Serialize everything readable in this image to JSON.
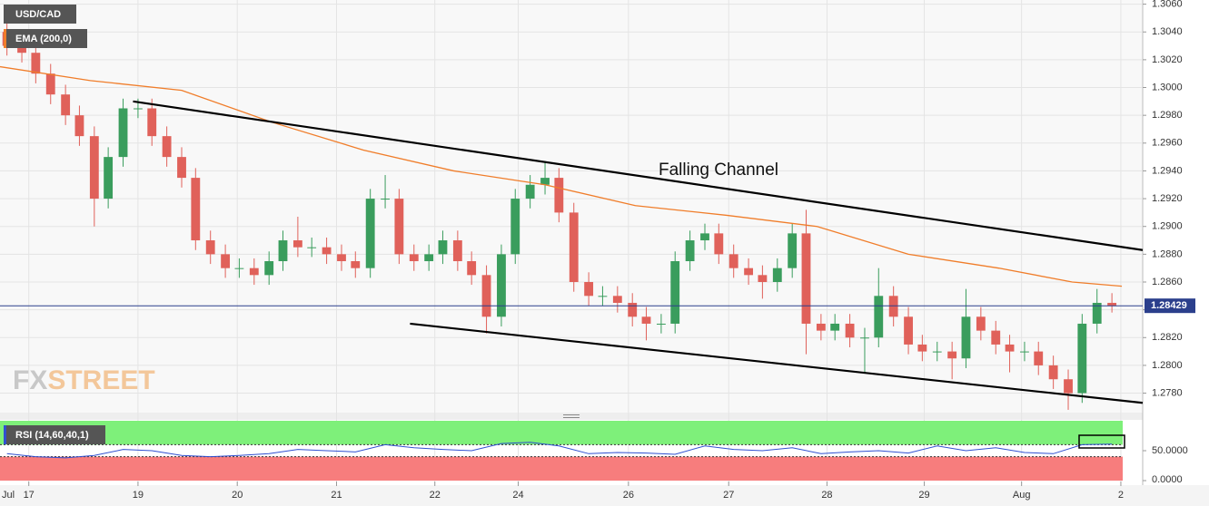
{
  "chart_data": [
    {
      "type": "candlestick",
      "title": "USD/CAD",
      "x_month_label": "Jul",
      "x": [
        0.07,
        0.22,
        0.36,
        0.51,
        0.66,
        0.8,
        0.95,
        1.09,
        1.24,
        1.39,
        1.53,
        1.68,
        1.83,
        1.97,
        2.12,
        2.27,
        2.41,
        2.56,
        2.71,
        2.85,
        3.0,
        3.14,
        3.29,
        3.44,
        3.58,
        3.73,
        3.88,
        4.02,
        4.17,
        4.32,
        4.46,
        4.61,
        4.75,
        4.9,
        5.05,
        5.19,
        5.34,
        5.49,
        5.63,
        5.78,
        5.93,
        6.07,
        6.22,
        6.37,
        6.51,
        6.66,
        6.8,
        6.95,
        7.1,
        7.24,
        7.39,
        7.54,
        7.68,
        7.83,
        7.98,
        8.12,
        8.27,
        8.41,
        8.56,
        8.71,
        8.85,
        9.0,
        9.15,
        9.29,
        9.44,
        9.59,
        9.73,
        9.88,
        10.03,
        10.17,
        10.32,
        10.46,
        10.61,
        10.76,
        10.9,
        11.05,
        11.2
      ],
      "open": [
        1.304,
        1.303,
        1.3025,
        1.301,
        1.2995,
        1.298,
        1.2965,
        1.292,
        1.295,
        1.2985,
        1.2985,
        1.2965,
        1.295,
        1.2935,
        1.289,
        1.288,
        1.287,
        1.287,
        1.2865,
        1.2875,
        1.289,
        1.2885,
        1.2885,
        1.288,
        1.2875,
        1.287,
        1.292,
        1.292,
        1.288,
        1.2875,
        1.288,
        1.289,
        1.2875,
        1.2865,
        1.2835,
        1.288,
        1.292,
        1.293,
        1.2935,
        1.291,
        1.286,
        1.285,
        1.285,
        1.2845,
        1.2835,
        1.283,
        1.283,
        1.2875,
        1.289,
        1.2895,
        1.288,
        1.287,
        1.2865,
        1.286,
        1.287,
        1.2895,
        1.283,
        1.2825,
        1.283,
        1.282,
        1.282,
        1.285,
        1.2835,
        1.2815,
        1.281,
        1.281,
        1.2805,
        1.2835,
        1.2825,
        1.2815,
        1.281,
        1.281,
        1.28,
        1.279,
        1.278,
        1.283,
        1.2845
      ],
      "high": [
        1.3047,
        1.3037,
        1.3032,
        1.3017,
        1.3002,
        1.2987,
        1.2972,
        1.2957,
        1.2992,
        1.2992,
        1.2992,
        1.2972,
        1.2957,
        1.2942,
        1.2897,
        1.2887,
        1.2877,
        1.2877,
        1.2882,
        1.2897,
        1.2907,
        1.2892,
        1.2892,
        1.2887,
        1.2882,
        1.2927,
        1.2937,
        1.2927,
        1.2887,
        1.2887,
        1.2897,
        1.2897,
        1.2882,
        1.2872,
        1.2887,
        1.2927,
        1.2937,
        1.2947,
        1.2942,
        1.2917,
        1.2867,
        1.2857,
        1.2857,
        1.2852,
        1.2842,
        1.2837,
        1.2882,
        1.2897,
        1.2902,
        1.2902,
        1.2887,
        1.2877,
        1.2872,
        1.2877,
        1.2902,
        1.2912,
        1.2837,
        1.2837,
        1.2837,
        1.2827,
        1.287,
        1.2857,
        1.2842,
        1.2822,
        1.2817,
        1.2817,
        1.2855,
        1.2842,
        1.2832,
        1.2822,
        1.2817,
        1.2817,
        1.2807,
        1.2797,
        1.2837,
        1.2855,
        1.2852
      ],
      "low": [
        1.3023,
        1.3018,
        1.3003,
        1.2988,
        1.2973,
        1.2958,
        1.29,
        1.2913,
        1.2943,
        1.2978,
        1.2958,
        1.2943,
        1.2928,
        1.2883,
        1.2873,
        1.2863,
        1.2863,
        1.2858,
        1.2858,
        1.2868,
        1.2878,
        1.2878,
        1.2873,
        1.2868,
        1.2863,
        1.2863,
        1.2913,
        1.2873,
        1.2868,
        1.2868,
        1.2873,
        1.2868,
        1.2858,
        1.2823,
        1.2828,
        1.2873,
        1.2913,
        1.2923,
        1.2903,
        1.2853,
        1.2843,
        1.2843,
        1.2838,
        1.2828,
        1.2818,
        1.2823,
        1.2823,
        1.2868,
        1.2883,
        1.2873,
        1.2863,
        1.2858,
        1.2848,
        1.2853,
        1.2863,
        1.2808,
        1.2818,
        1.2818,
        1.2813,
        1.2795,
        1.2813,
        1.2828,
        1.2808,
        1.2803,
        1.2803,
        1.279,
        1.2798,
        1.2818,
        1.2808,
        1.2795,
        1.2803,
        1.2793,
        1.2783,
        1.2768,
        1.2773,
        1.2823,
        1.2838
      ],
      "close": [
        1.303,
        1.3025,
        1.301,
        1.2995,
        1.298,
        1.2965,
        1.292,
        1.295,
        1.2985,
        1.2985,
        1.2965,
        1.295,
        1.2935,
        1.289,
        1.288,
        1.287,
        1.287,
        1.2865,
        1.2875,
        1.289,
        1.2885,
        1.2885,
        1.288,
        1.2875,
        1.287,
        1.292,
        1.292,
        1.288,
        1.2875,
        1.288,
        1.289,
        1.2875,
        1.2865,
        1.2835,
        1.288,
        1.292,
        1.293,
        1.2935,
        1.291,
        1.286,
        1.285,
        1.285,
        1.2845,
        1.2835,
        1.283,
        1.283,
        1.2875,
        1.289,
        1.2895,
        1.288,
        1.287,
        1.2865,
        1.286,
        1.287,
        1.2895,
        1.283,
        1.2825,
        1.283,
        1.282,
        1.282,
        1.285,
        1.2835,
        1.2815,
        1.281,
        1.281,
        1.2805,
        1.2835,
        1.2825,
        1.2815,
        1.281,
        1.281,
        1.28,
        1.279,
        1.278,
        1.283,
        1.2845,
        1.2843
      ],
      "up_color": "#3a9d5d",
      "down_color": "#e0615a",
      "overlay": {
        "name": "EMA (200,0)",
        "color": "#f07d2a",
        "x": [
          0,
          0.91,
          1.83,
          2.74,
          3.66,
          4.57,
          5.49,
          6.4,
          7.32,
          8.23,
          9.15,
          10.06,
          10.8,
          11.3
        ],
        "values": [
          1.3015,
          1.3005,
          1.2998,
          1.2975,
          1.2955,
          1.294,
          1.293,
          1.2915,
          1.2908,
          1.29,
          1.288,
          1.287,
          1.286,
          1.2857
        ]
      },
      "trendlines": [
        {
          "x": [
            1.34,
            11.51
          ],
          "values": [
            1.299,
            1.2883
          ]
        },
        {
          "x": [
            4.13,
            11.51
          ],
          "values": [
            1.283,
            1.2773
          ]
        }
      ],
      "annotation": "Falling Channel",
      "current_price": 1.28429,
      "watermark": [
        "FX",
        "STREET"
      ],
      "xlim": [
        0,
        11.51
      ],
      "ylim": [
        1.2766,
        1.3063
      ],
      "yticks": [
        {
          "value": 1.306,
          "label": "1.3060"
        },
        {
          "value": 1.304,
          "label": "1.3040"
        },
        {
          "value": 1.302,
          "label": "1.3020"
        },
        {
          "value": 1.3,
          "label": "1.3000"
        },
        {
          "value": 1.298,
          "label": "1.2980"
        },
        {
          "value": 1.296,
          "label": "1.2960"
        },
        {
          "value": 1.294,
          "label": "1.2940"
        },
        {
          "value": 1.292,
          "label": "1.2920"
        },
        {
          "value": 1.29,
          "label": "1.2900"
        },
        {
          "value": 1.288,
          "label": "1.2880"
        },
        {
          "value": 1.286,
          "label": "1.2860"
        },
        {
          "value": 1.284,
          "label": "1.2840"
        },
        {
          "value": 1.282,
          "label": "1.2820"
        },
        {
          "value": 1.28,
          "label": "1.2800"
        },
        {
          "value": 1.278,
          "label": "1.2780"
        }
      ],
      "xticks": [
        {
          "value": 0.29,
          "label": "17"
        },
        {
          "value": 1.39,
          "label": "19"
        },
        {
          "value": 2.39,
          "label": "20"
        },
        {
          "value": 3.39,
          "label": "21"
        },
        {
          "value": 4.38,
          "label": "22"
        },
        {
          "value": 5.22,
          "label": "24"
        },
        {
          "value": 6.33,
          "label": "26"
        },
        {
          "value": 7.34,
          "label": "27"
        },
        {
          "value": 8.33,
          "label": "28"
        },
        {
          "value": 9.31,
          "label": "29"
        },
        {
          "value": 10.29,
          "label": "Aug"
        },
        {
          "value": 11.29,
          "label": "2"
        }
      ],
      "grid": true
    },
    {
      "type": "line",
      "title": "RSI (14,60,40,1)",
      "color": "#3050d0",
      "x": [
        0.07,
        0.36,
        0.66,
        0.95,
        1.24,
        1.53,
        1.83,
        2.12,
        2.41,
        2.71,
        3.0,
        3.29,
        3.58,
        3.88,
        4.17,
        4.46,
        4.75,
        5.05,
        5.34,
        5.63,
        5.93,
        6.22,
        6.51,
        6.8,
        7.1,
        7.39,
        7.68,
        7.98,
        8.27,
        8.56,
        8.85,
        9.15,
        9.44,
        9.73,
        10.03,
        10.32,
        10.61,
        10.9,
        11.2
      ],
      "values": [
        45,
        40,
        38,
        42,
        52,
        50,
        42,
        40,
        42,
        45,
        52,
        50,
        48,
        60,
        55,
        52,
        50,
        62,
        64,
        58,
        45,
        47,
        46,
        44,
        58,
        52,
        50,
        55,
        45,
        48,
        50,
        46,
        58,
        50,
        55,
        47,
        45,
        60,
        61
      ],
      "levels": [
        60,
        40
      ],
      "upper_color": "#7ef07a",
      "lower_color": "#f77d7d",
      "xlim": [
        0,
        11.51
      ],
      "ylim": [
        0,
        100
      ],
      "yticks": [
        {
          "value": 50,
          "label": "50.0000"
        },
        {
          "value": 0,
          "label": "0.0000"
        }
      ]
    }
  ]
}
